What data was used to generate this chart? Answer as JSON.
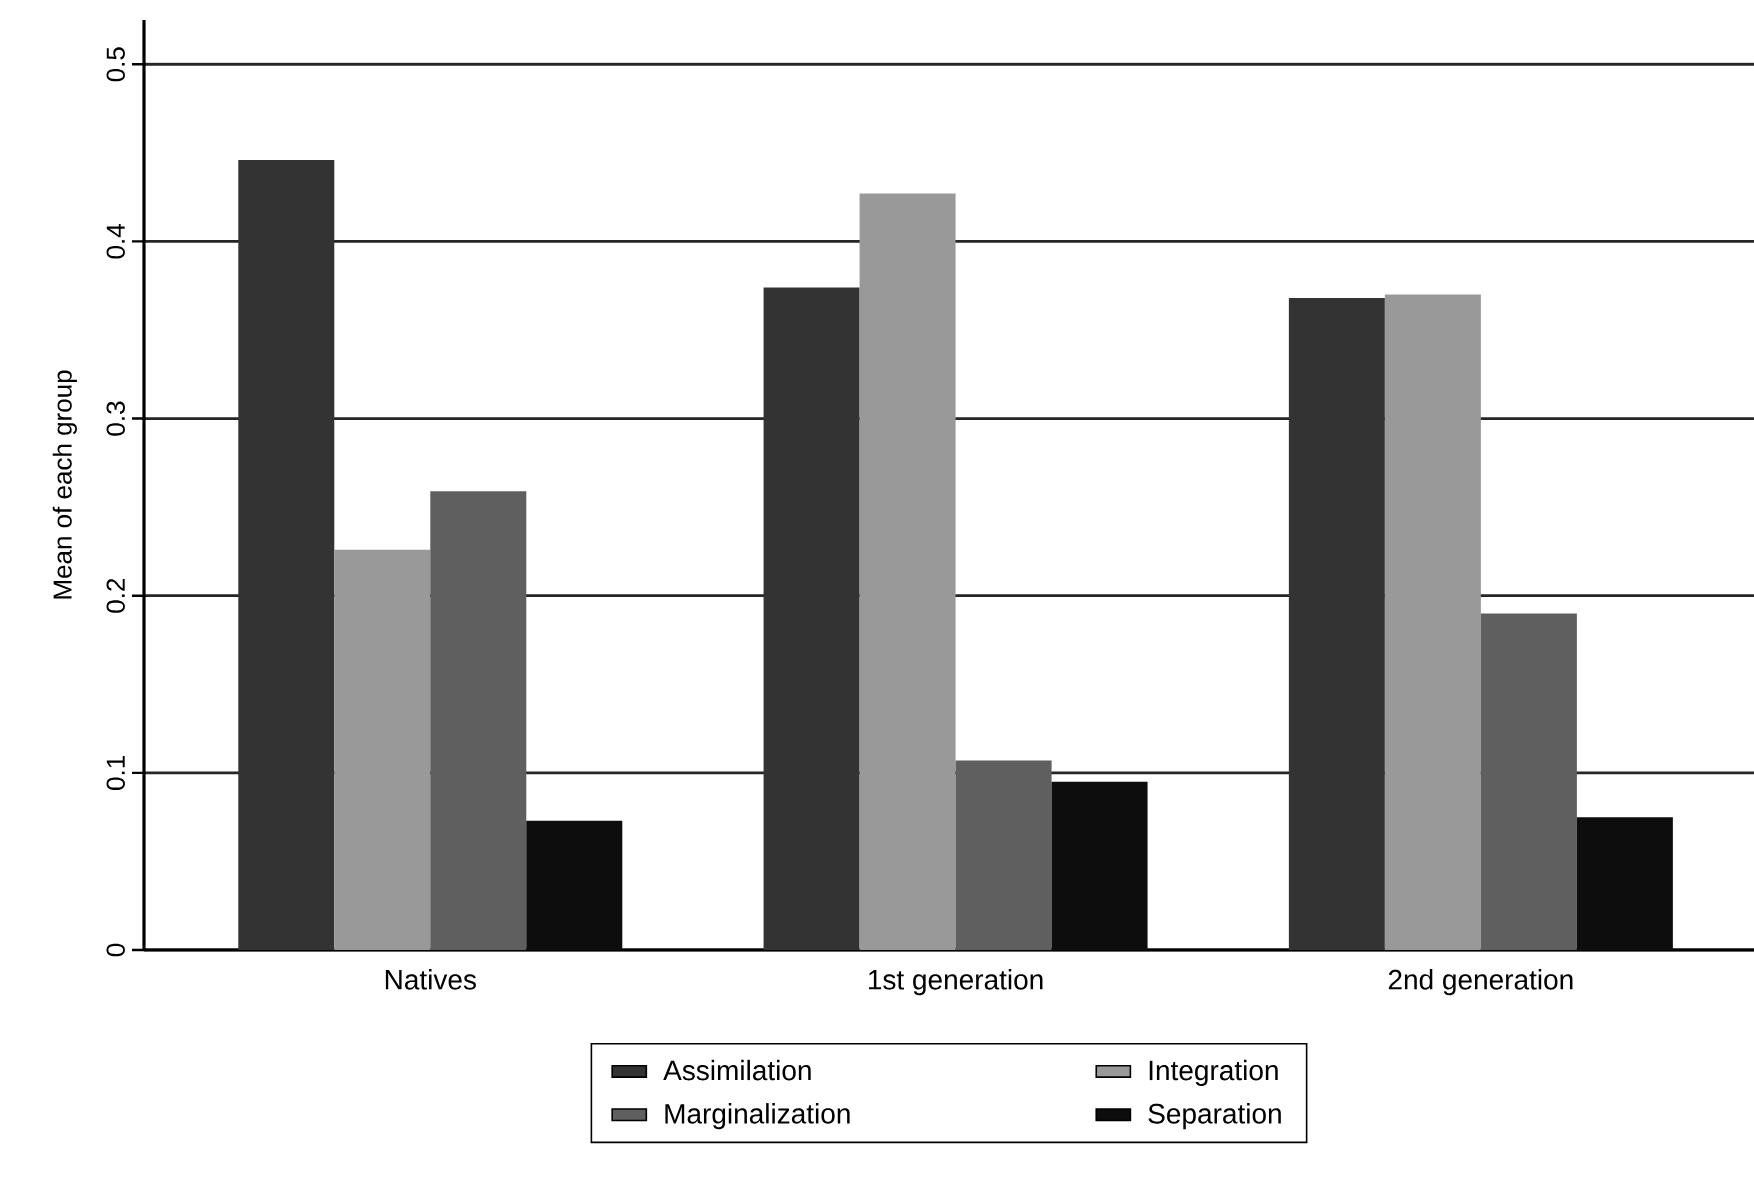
{
  "chart_data": {
    "type": "bar",
    "ylabel": "Mean of each group",
    "categories": [
      "Natives",
      "1st generation",
      "2nd generation"
    ],
    "series": [
      {
        "name": "Assimilation",
        "color": "#333333",
        "values": [
          0.446,
          0.374,
          0.368
        ]
      },
      {
        "name": "Integration",
        "color": "#999999",
        "values": [
          0.226,
          0.427,
          0.37
        ]
      },
      {
        "name": "Marginalization",
        "color": "#5f5f5f",
        "values": [
          0.259,
          0.107,
          0.19
        ]
      },
      {
        "name": "Separation",
        "color": "#0d0d0d",
        "values": [
          0.073,
          0.095,
          0.075
        ]
      }
    ],
    "ylim": [
      0,
      0.525
    ],
    "yticks": [
      0,
      0.1,
      0.2,
      0.3,
      0.4,
      0.5
    ],
    "grid": "y",
    "legend": "bottom"
  }
}
